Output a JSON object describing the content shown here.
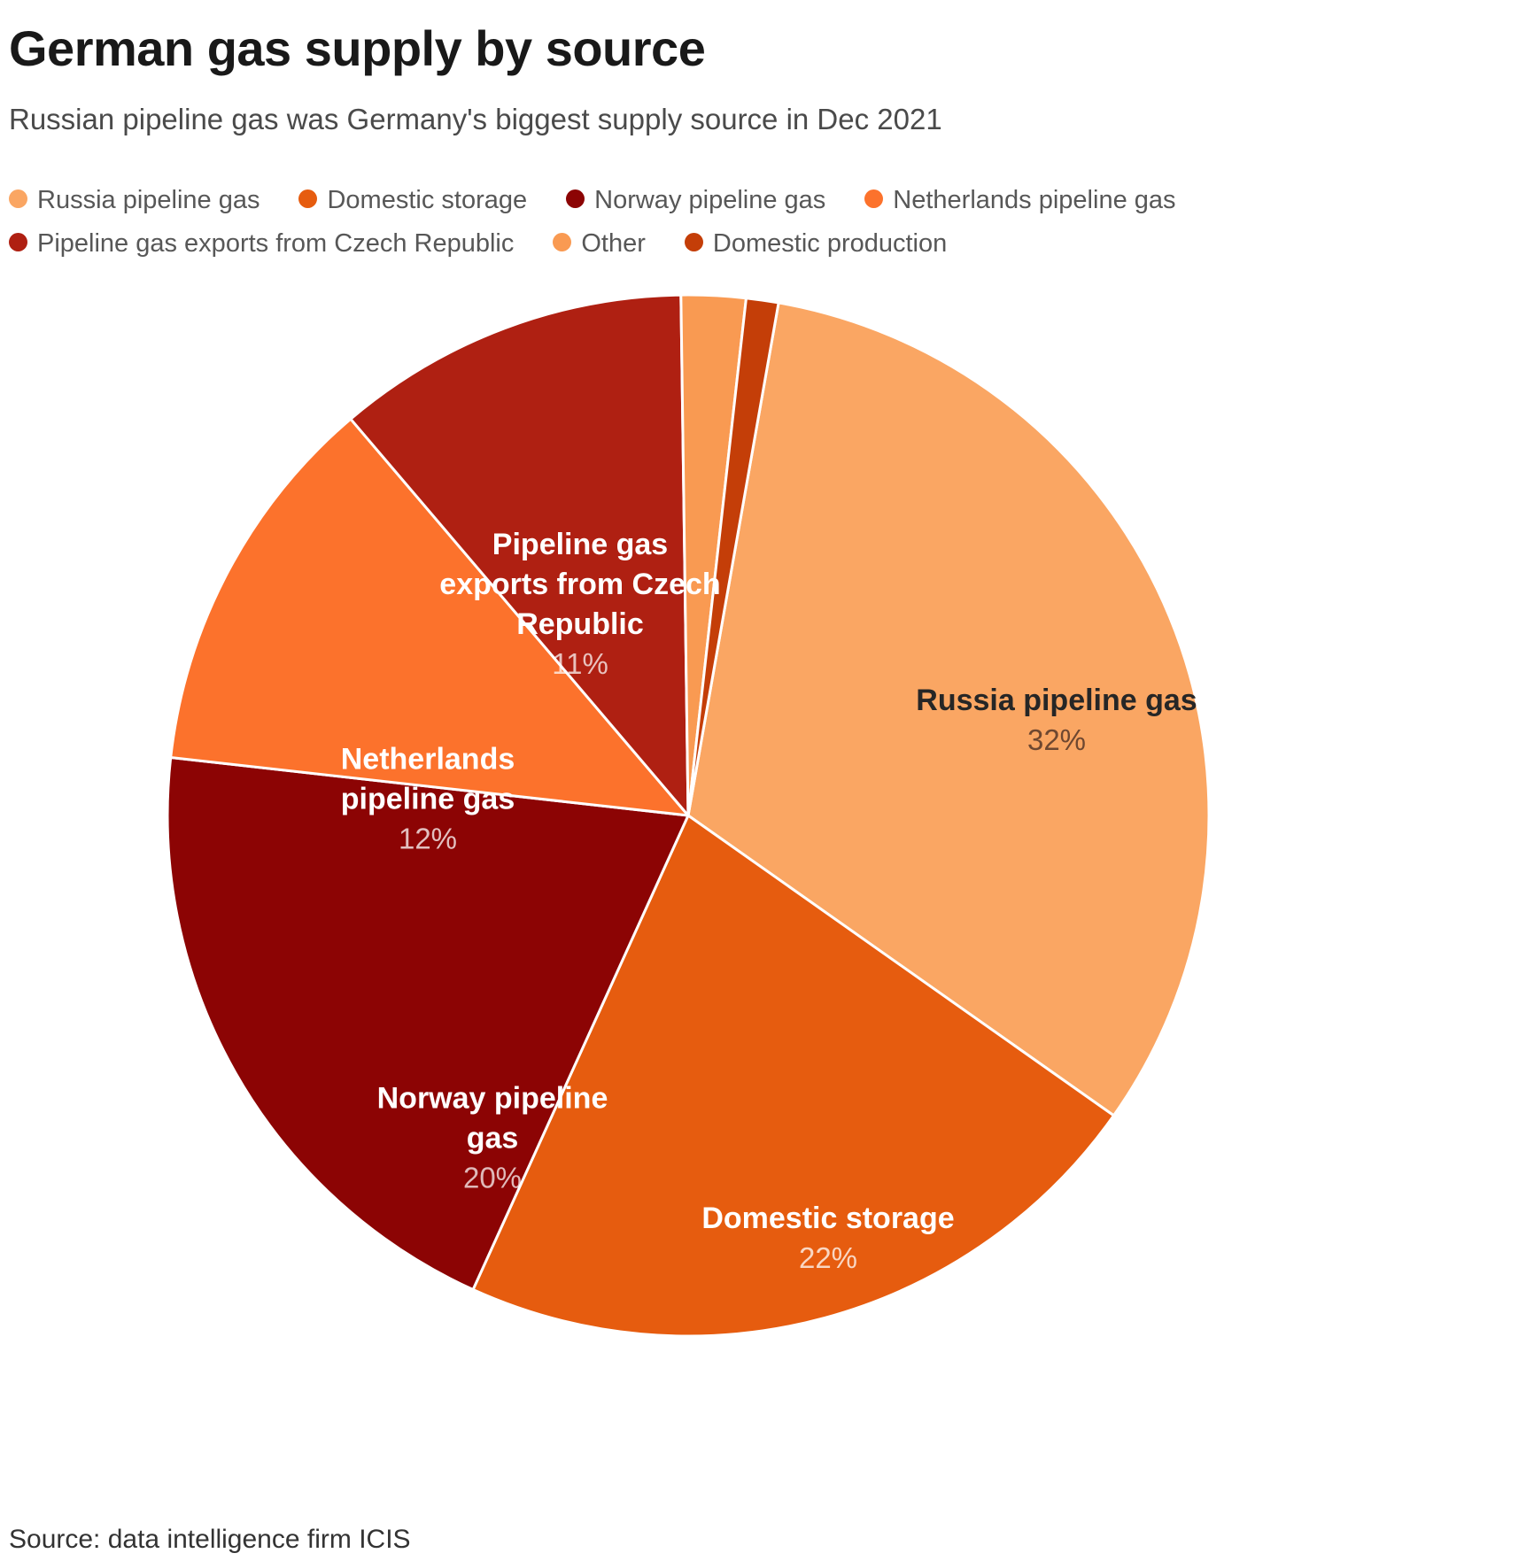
{
  "header": {
    "title": "German gas supply by source",
    "subtitle": "Russian pipeline gas was Germany's biggest supply source in Dec 2021"
  },
  "source": {
    "text": "Source: data intelligence firm ICIS"
  },
  "chart_data": {
    "type": "pie",
    "title": "German gas supply by source",
    "unit": "%",
    "start_angle_deg": 10,
    "direction": "clockwise",
    "legend_text_color": "#575757",
    "slices": [
      {
        "label": "Russia pipeline gas",
        "value": 32,
        "pct_label": "32%",
        "color": "#FAA663",
        "label_color": "#262626",
        "pct_color": "#6E4730",
        "show_label": true
      },
      {
        "label": "Domestic storage",
        "value": 22,
        "pct_label": "22%",
        "color": "#E65C0F",
        "label_color": "#FFFFFF",
        "pct_color": "rgba(255,255,255,0.75)",
        "show_label": true
      },
      {
        "label": "Norway pipeline gas",
        "value": 20,
        "pct_label": "20%",
        "color": "#8C0404",
        "label_color": "#FFFFFF",
        "pct_color": "rgba(255,255,255,0.72)",
        "show_label": true
      },
      {
        "label": "Netherlands pipeline gas",
        "value": 12,
        "pct_label": "12%",
        "color": "#FC722C",
        "label_color": "#FFFFFF",
        "pct_color": "rgba(255,255,255,0.75)",
        "show_label": true
      },
      {
        "label": "Pipeline gas exports from Czech Republic",
        "value": 11,
        "pct_label": "11%",
        "color": "#AF2012",
        "label_color": "#FFFFFF",
        "pct_color": "rgba(255,255,255,0.72)",
        "show_label": true
      },
      {
        "label": "Other",
        "value": 2,
        "pct_label": "2%",
        "color": "#F99A52",
        "label_color": "#FFFFFF",
        "pct_color": "rgba(255,255,255,0.75)",
        "show_label": false
      },
      {
        "label": "Domestic production",
        "value": 1,
        "pct_label": "1%",
        "color": "#C43E08",
        "label_color": "#FFFFFF",
        "pct_color": "rgba(255,255,255,0.75)",
        "show_label": false
      }
    ]
  }
}
